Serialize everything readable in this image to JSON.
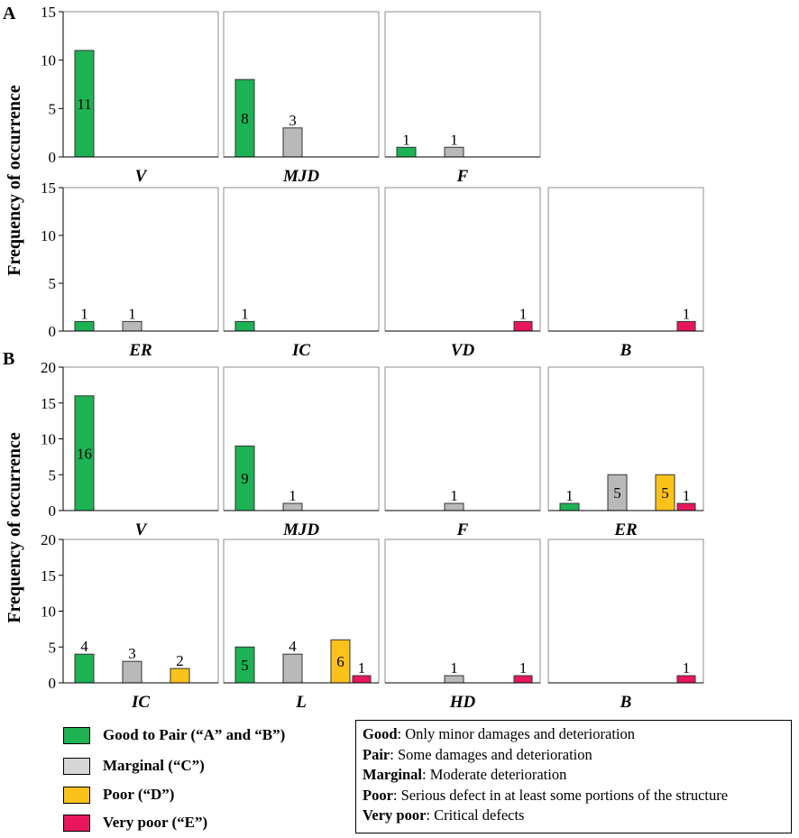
{
  "figure": {
    "ylabel": "Frequency of occurrence",
    "panels": [
      {
        "label": "A"
      },
      {
        "label": "B"
      }
    ]
  },
  "colors": {
    "good": "#1db254",
    "marginal": "#b9b9b9",
    "poor": "#fcc21c",
    "very_poor": "#e8175d"
  },
  "chart_data": [
    {
      "type": "bar",
      "panel": "A",
      "title": "V",
      "ylim": [
        0,
        15
      ],
      "yticks": [
        0,
        5,
        10,
        15
      ],
      "categories": [
        "Good to Pair",
        "Marginal",
        "Poor",
        "Very poor"
      ],
      "values": [
        11,
        0,
        0,
        0
      ],
      "labels": [
        "11",
        "",
        "",
        ""
      ]
    },
    {
      "type": "bar",
      "panel": "A",
      "title": "MJD",
      "ylim": [
        0,
        15
      ],
      "yticks": [
        0,
        5,
        10,
        15
      ],
      "categories": [
        "Good to Pair",
        "Marginal",
        "Poor",
        "Very poor"
      ],
      "values": [
        8,
        3,
        0,
        0
      ],
      "labels": [
        "8",
        "3",
        "",
        ""
      ]
    },
    {
      "type": "bar",
      "panel": "A",
      "title": "F",
      "ylim": [
        0,
        15
      ],
      "yticks": [
        0,
        5,
        10,
        15
      ],
      "categories": [
        "Good to Pair",
        "Marginal",
        "Poor",
        "Very poor"
      ],
      "values": [
        1,
        1,
        0,
        0
      ],
      "labels": [
        "1",
        "1",
        "",
        ""
      ]
    },
    {
      "type": "bar",
      "panel": "A",
      "title": "ER",
      "ylim": [
        0,
        15
      ],
      "yticks": [
        0,
        5,
        10,
        15
      ],
      "categories": [
        "Good to Pair",
        "Marginal",
        "Poor",
        "Very poor"
      ],
      "values": [
        1,
        1,
        0,
        0
      ],
      "labels": [
        "1",
        "1",
        "",
        ""
      ]
    },
    {
      "type": "bar",
      "panel": "A",
      "title": "IC",
      "ylim": [
        0,
        15
      ],
      "yticks": [
        0,
        5,
        10,
        15
      ],
      "categories": [
        "Good to Pair",
        "Marginal",
        "Poor",
        "Very poor"
      ],
      "values": [
        1,
        0,
        0,
        0
      ],
      "labels": [
        "1",
        "",
        "",
        ""
      ]
    },
    {
      "type": "bar",
      "panel": "A",
      "title": "VD",
      "ylim": [
        0,
        15
      ],
      "yticks": [
        0,
        5,
        10,
        15
      ],
      "categories": [
        "Good to Pair",
        "Marginal",
        "Poor",
        "Very poor"
      ],
      "values": [
        0,
        0,
        0,
        1
      ],
      "labels": [
        "",
        "",
        "",
        "1"
      ]
    },
    {
      "type": "bar",
      "panel": "A",
      "title": "B",
      "ylim": [
        0,
        15
      ],
      "yticks": [
        0,
        5,
        10,
        15
      ],
      "categories": [
        "Good to Pair",
        "Marginal",
        "Poor",
        "Very poor"
      ],
      "values": [
        0,
        0,
        0,
        1
      ],
      "labels": [
        "",
        "",
        "",
        "1"
      ]
    },
    {
      "type": "bar",
      "panel": "B",
      "title": "V",
      "ylim": [
        0,
        20
      ],
      "yticks": [
        0,
        5,
        10,
        15,
        20
      ],
      "categories": [
        "Good to Pair",
        "Marginal",
        "Poor",
        "Very poor"
      ],
      "values": [
        16,
        0,
        0,
        0
      ],
      "labels": [
        "16",
        "",
        "",
        ""
      ]
    },
    {
      "type": "bar",
      "panel": "B",
      "title": "MJD",
      "ylim": [
        0,
        20
      ],
      "yticks": [
        0,
        5,
        10,
        15,
        20
      ],
      "categories": [
        "Good to Pair",
        "Marginal",
        "Poor",
        "Very poor"
      ],
      "values": [
        9,
        1,
        0,
        0
      ],
      "labels": [
        "9",
        "1",
        "",
        ""
      ]
    },
    {
      "type": "bar",
      "panel": "B",
      "title": "F",
      "ylim": [
        0,
        20
      ],
      "yticks": [
        0,
        5,
        10,
        15,
        20
      ],
      "categories": [
        "Good to Pair",
        "Marginal",
        "Poor",
        "Very poor"
      ],
      "values": [
        0,
        1,
        0,
        0
      ],
      "labels": [
        "",
        "1",
        "",
        ""
      ]
    },
    {
      "type": "bar",
      "panel": "B",
      "title": "ER",
      "ylim": [
        0,
        20
      ],
      "yticks": [
        0,
        5,
        10,
        15,
        20
      ],
      "categories": [
        "Good to Pair",
        "Marginal",
        "Poor",
        "Very poor"
      ],
      "values": [
        1,
        5,
        5,
        1
      ],
      "labels": [
        "1",
        "5",
        "5",
        "1"
      ]
    },
    {
      "type": "bar",
      "panel": "B",
      "title": "IC",
      "ylim": [
        0,
        20
      ],
      "yticks": [
        0,
        5,
        10,
        15,
        20
      ],
      "categories": [
        "Good to Pair",
        "Marginal",
        "Poor",
        "Very poor"
      ],
      "values": [
        4,
        3,
        2,
        0
      ],
      "labels": [
        "4",
        "3",
        "2",
        ""
      ]
    },
    {
      "type": "bar",
      "panel": "B",
      "title": "L",
      "ylim": [
        0,
        20
      ],
      "yticks": [
        0,
        5,
        10,
        15,
        20
      ],
      "categories": [
        "Good to Pair",
        "Marginal",
        "Poor",
        "Very poor"
      ],
      "values": [
        5,
        4,
        6,
        1
      ],
      "labels": [
        "5",
        "4",
        "6",
        "1"
      ]
    },
    {
      "type": "bar",
      "panel": "B",
      "title": "HD",
      "ylim": [
        0,
        20
      ],
      "yticks": [
        0,
        5,
        10,
        15,
        20
      ],
      "categories": [
        "Good to Pair",
        "Marginal",
        "Poor",
        "Very poor"
      ],
      "values": [
        0,
        1,
        0,
        1
      ],
      "labels": [
        "",
        "1",
        "",
        "1"
      ]
    },
    {
      "type": "bar",
      "panel": "B",
      "title": "B",
      "ylim": [
        0,
        20
      ],
      "yticks": [
        0,
        5,
        10,
        15,
        20
      ],
      "categories": [
        "Good to Pair",
        "Marginal",
        "Poor",
        "Very poor"
      ],
      "values": [
        0,
        0,
        0,
        1
      ],
      "labels": [
        "",
        "",
        "",
        "1"
      ]
    }
  ],
  "legend": {
    "items": [
      {
        "label": "Good to Pair (“A” and “B”)",
        "color": "#1db254"
      },
      {
        "label": "Marginal (“C”)",
        "color": "#d6d6d6"
      },
      {
        "label": "Poor (“D”)",
        "color": "#fcc21c"
      },
      {
        "label": "Very poor (“E”)",
        "color": "#e8175d"
      }
    ]
  },
  "definitions": [
    {
      "term": "Good",
      "text": ": Only minor damages and deterioration"
    },
    {
      "term": "Pair",
      "text": ": Some damages and deterioration"
    },
    {
      "term": "Marginal",
      "text": ": Moderate deterioration"
    },
    {
      "term": "Poor",
      "text": ": Serious defect in at least some portions of the structure"
    },
    {
      "term": "Very poor",
      "text": ": Critical defects"
    }
  ]
}
